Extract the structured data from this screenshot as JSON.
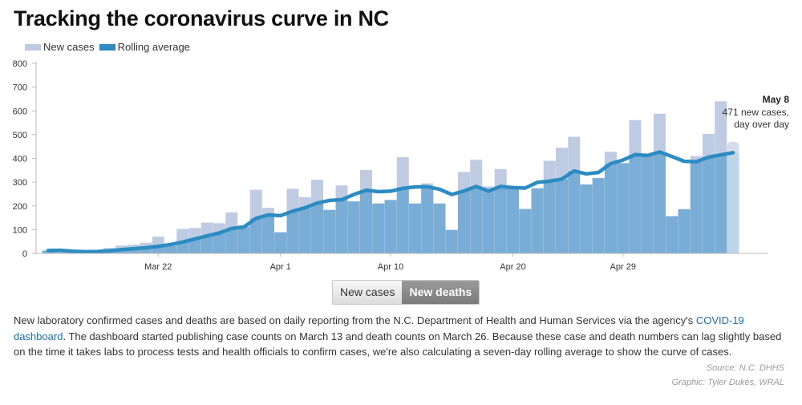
{
  "header": {
    "title": "Tracking the coronavirus curve in NC"
  },
  "legend": {
    "new_cases_label": "New cases",
    "rolling_label": "Rolling average"
  },
  "colors": {
    "bar_light": "#bfcbe3",
    "bar_dark": "#79add6",
    "line": "#2c8bc0",
    "axis": "#bbbbbb"
  },
  "chart_data": {
    "type": "bar",
    "title": "Tracking the coronavirus curve in NC",
    "xlabel": "",
    "ylabel": "",
    "ylim": [
      0,
      800
    ],
    "yticks": [
      0,
      100,
      200,
      300,
      400,
      500,
      600,
      700,
      800
    ],
    "x_tick_labels": [
      {
        "label": "Mar 22",
        "day_index": 9
      },
      {
        "label": "Apr 1",
        "day_index": 19
      },
      {
        "label": "Apr 10",
        "day_index": 28
      },
      {
        "label": "Apr 20",
        "day_index": 38
      },
      {
        "label": "Apr 29",
        "day_index": 47
      }
    ],
    "categories": [
      "Mar 13",
      "Mar 14",
      "Mar 15",
      "Mar 16",
      "Mar 17",
      "Mar 18",
      "Mar 19",
      "Mar 20",
      "Mar 21",
      "Mar 22",
      "Mar 23",
      "Mar 24",
      "Mar 25",
      "Mar 26",
      "Mar 27",
      "Mar 28",
      "Mar 29",
      "Mar 30",
      "Mar 31",
      "Apr 1",
      "Apr 2",
      "Apr 3",
      "Apr 4",
      "Apr 5",
      "Apr 6",
      "Apr 7",
      "Apr 8",
      "Apr 9",
      "Apr 10",
      "Apr 11",
      "Apr 12",
      "Apr 13",
      "Apr 14",
      "Apr 15",
      "Apr 16",
      "Apr 17",
      "Apr 18",
      "Apr 19",
      "Apr 20",
      "Apr 21",
      "Apr 22",
      "Apr 23",
      "Apr 24",
      "Apr 25",
      "Apr 26",
      "Apr 27",
      "Apr 28",
      "Apr 29",
      "Apr 30",
      "May 1",
      "May 2",
      "May 3",
      "May 4",
      "May 5",
      "May 6",
      "May 7",
      "May 8"
    ],
    "series": [
      {
        "name": "New cases",
        "values": [
          12,
          4,
          5,
          4,
          9,
          23,
          33,
          37,
          45,
          71,
          32,
          103,
          107,
          130,
          127,
          173,
          119,
          268,
          192,
          89,
          272,
          237,
          310,
          183,
          286,
          219,
          351,
          210,
          225,
          405,
          210,
          295,
          210,
          99,
          343,
          394,
          282,
          355,
          282,
          187,
          274,
          390,
          445,
          491,
          290,
          317,
          428,
          380,
          561,
          415,
          588,
          157,
          186,
          410,
          503,
          640,
          471
        ]
      },
      {
        "name": "Rolling average",
        "values": [
          12,
          13,
          9,
          7,
          8,
          11,
          16,
          20,
          24,
          30,
          37,
          48,
          61,
          74,
          86,
          105,
          111,
          148,
          162,
          159,
          178,
          192,
          212,
          223,
          226,
          248,
          266,
          260,
          262,
          274,
          280,
          281,
          270,
          248,
          263,
          282,
          262,
          282,
          277,
          275,
          299,
          304,
          313,
          347,
          335,
          341,
          378,
          393,
          416,
          412,
          427,
          408,
          388,
          386,
          405,
          415,
          424
        ]
      }
    ],
    "annotation": {
      "date": "May 8",
      "line1": "471 new cases,",
      "line2": "day over day"
    }
  },
  "toggle": {
    "new_cases": "New cases",
    "new_deaths": "New deaths"
  },
  "description": {
    "part1": "New laboratory confirmed cases and deaths are based on daily reporting from the N.C. Department of Health and Human Services via the agency's ",
    "link": "COVID-19 dashboard",
    "part2": ". The dashboard started publishing case counts on March 13 and death counts on March 26. Because these case and death numbers can lag slightly based on the time it takes labs to process tests and health officials to confirm cases, we're also calculating a seven-day rolling average to show the curve of cases."
  },
  "source": {
    "line1": "Source: N.C. DHHS",
    "line2": "Graphic: Tyler Dukes, WRAL"
  }
}
